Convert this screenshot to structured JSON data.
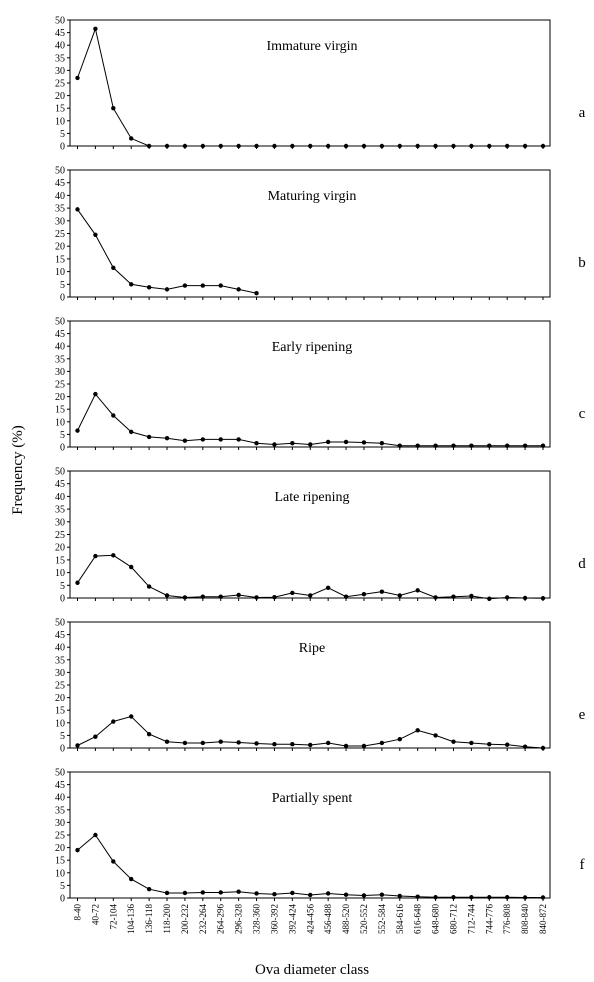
{
  "chart_data": {
    "type": "line",
    "ylabel": "Frequency (%)",
    "xlabel": "Ova diameter class",
    "ylim": [
      0,
      50
    ],
    "yticks": [
      0,
      5,
      10,
      15,
      20,
      25,
      30,
      35,
      40,
      45,
      50
    ],
    "grid": false,
    "categories": [
      "8-40",
      "40-72",
      "72-104",
      "104-136",
      "136-118",
      "118-200",
      "200-232",
      "232-264",
      "264-296",
      "296-328",
      "328-360",
      "360-392",
      "392-424",
      "424-456",
      "456-488",
      "488-520",
      "520-552",
      "552-584",
      "584-616",
      "616-648",
      "648-680",
      "680-712",
      "712-744",
      "744-776",
      "776-808",
      "808-840",
      "840-872"
    ],
    "panels": [
      {
        "letter": "a",
        "title": "Immature virgin",
        "values": [
          27,
          46.5,
          15,
          3,
          0,
          0,
          0,
          0,
          0,
          0,
          0,
          0,
          0,
          0,
          0,
          0,
          0,
          0,
          0,
          0,
          0,
          0,
          0,
          0,
          0,
          0,
          0
        ]
      },
      {
        "letter": "b",
        "title": "Maturing virgin",
        "values": [
          34.5,
          24.5,
          11.5,
          5,
          3.8,
          3,
          4.5,
          4.5,
          4.5,
          3,
          1.5
        ]
      },
      {
        "letter": "c",
        "title": "Early ripening",
        "values": [
          6.5,
          21,
          12.5,
          6,
          4,
          3.5,
          2.5,
          3,
          3,
          3,
          1.5,
          1,
          1.5,
          1,
          2,
          2,
          1.8,
          1.5,
          0.5,
          0.5,
          0.5,
          0.5,
          0.5,
          0.5,
          0.5,
          0.5,
          0.5
        ]
      },
      {
        "letter": "d",
        "title": "Late ripening",
        "values": [
          6,
          16.5,
          16.8,
          12.2,
          4.5,
          1,
          0.2,
          0.5,
          0.5,
          1.2,
          0.2,
          0.3,
          2,
          1,
          4,
          0.5,
          1.5,
          2.5,
          1,
          3,
          0.2,
          0.5,
          0.8,
          -0.3,
          0.2,
          0,
          -0.1
        ]
      },
      {
        "letter": "e",
        "title": "Ripe",
        "values": [
          1,
          4.5,
          10.5,
          12.5,
          5.5,
          2.5,
          2,
          2,
          2.5,
          2.2,
          1.8,
          1.5,
          1.5,
          1.2,
          2,
          0.8,
          0.8,
          2,
          3.5,
          7,
          5,
          2.5,
          2,
          1.5,
          1.3,
          0.5,
          0
        ]
      },
      {
        "letter": "f",
        "title": "Partially spent",
        "values": [
          19,
          25,
          14.5,
          7.5,
          3.5,
          2,
          2,
          2.2,
          2.2,
          2.5,
          1.8,
          1.5,
          2,
          1.2,
          1.8,
          1.3,
          1,
          1.3,
          0.8,
          0.5,
          0.3,
          0.3,
          0.3,
          0.3,
          0.3,
          0.2,
          0.2
        ]
      }
    ]
  }
}
